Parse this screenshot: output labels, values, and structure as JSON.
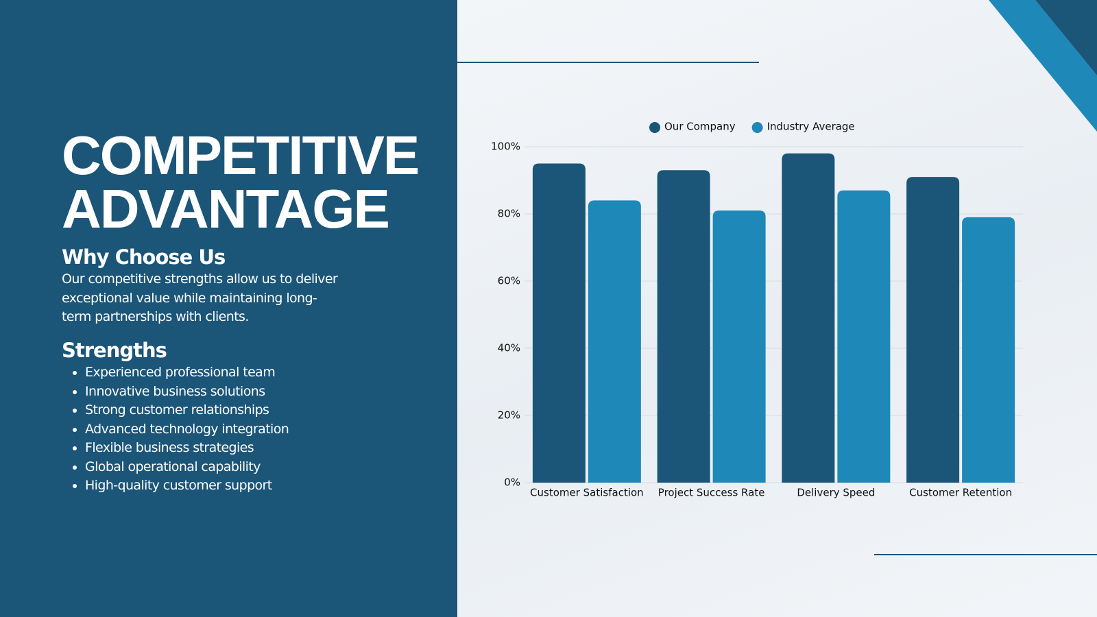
{
  "panel": {
    "title": "COMPETITIVE ADVANTAGE",
    "subtitle": "Why Choose Us",
    "body": "Our competitive strengths allow us to deliver exceptional value while maintaining long-term partnerships with clients.",
    "strengths_title": "Strengths",
    "strengths": [
      "Experienced professional team",
      "Innovative business solutions",
      "Strong customer relationships",
      "Advanced technology integration",
      "Flexible business strategies",
      "Global operational capability",
      "High-quality customer support"
    ]
  },
  "chart_data": {
    "type": "bar",
    "categories": [
      "Customer Satisfaction",
      "Project Success Rate",
      "Delivery Speed",
      "Customer Retention"
    ],
    "series": [
      {
        "name": "Our Company",
        "color": "#1b5578",
        "values": [
          95,
          93,
          98,
          91
        ]
      },
      {
        "name": "Industry Average",
        "color": "#1e88b8",
        "values": [
          84,
          81,
          87,
          79
        ]
      }
    ],
    "ylim": [
      0,
      100
    ],
    "yticks": [
      {
        "value": 0,
        "label": "0%"
      },
      {
        "value": 20,
        "label": "20%"
      },
      {
        "value": 40,
        "label": "40%"
      },
      {
        "value": 60,
        "label": "60%"
      },
      {
        "value": 80,
        "label": "80%"
      },
      {
        "value": 100,
        "label": "100%"
      }
    ],
    "grid": true,
    "legend": "top"
  }
}
